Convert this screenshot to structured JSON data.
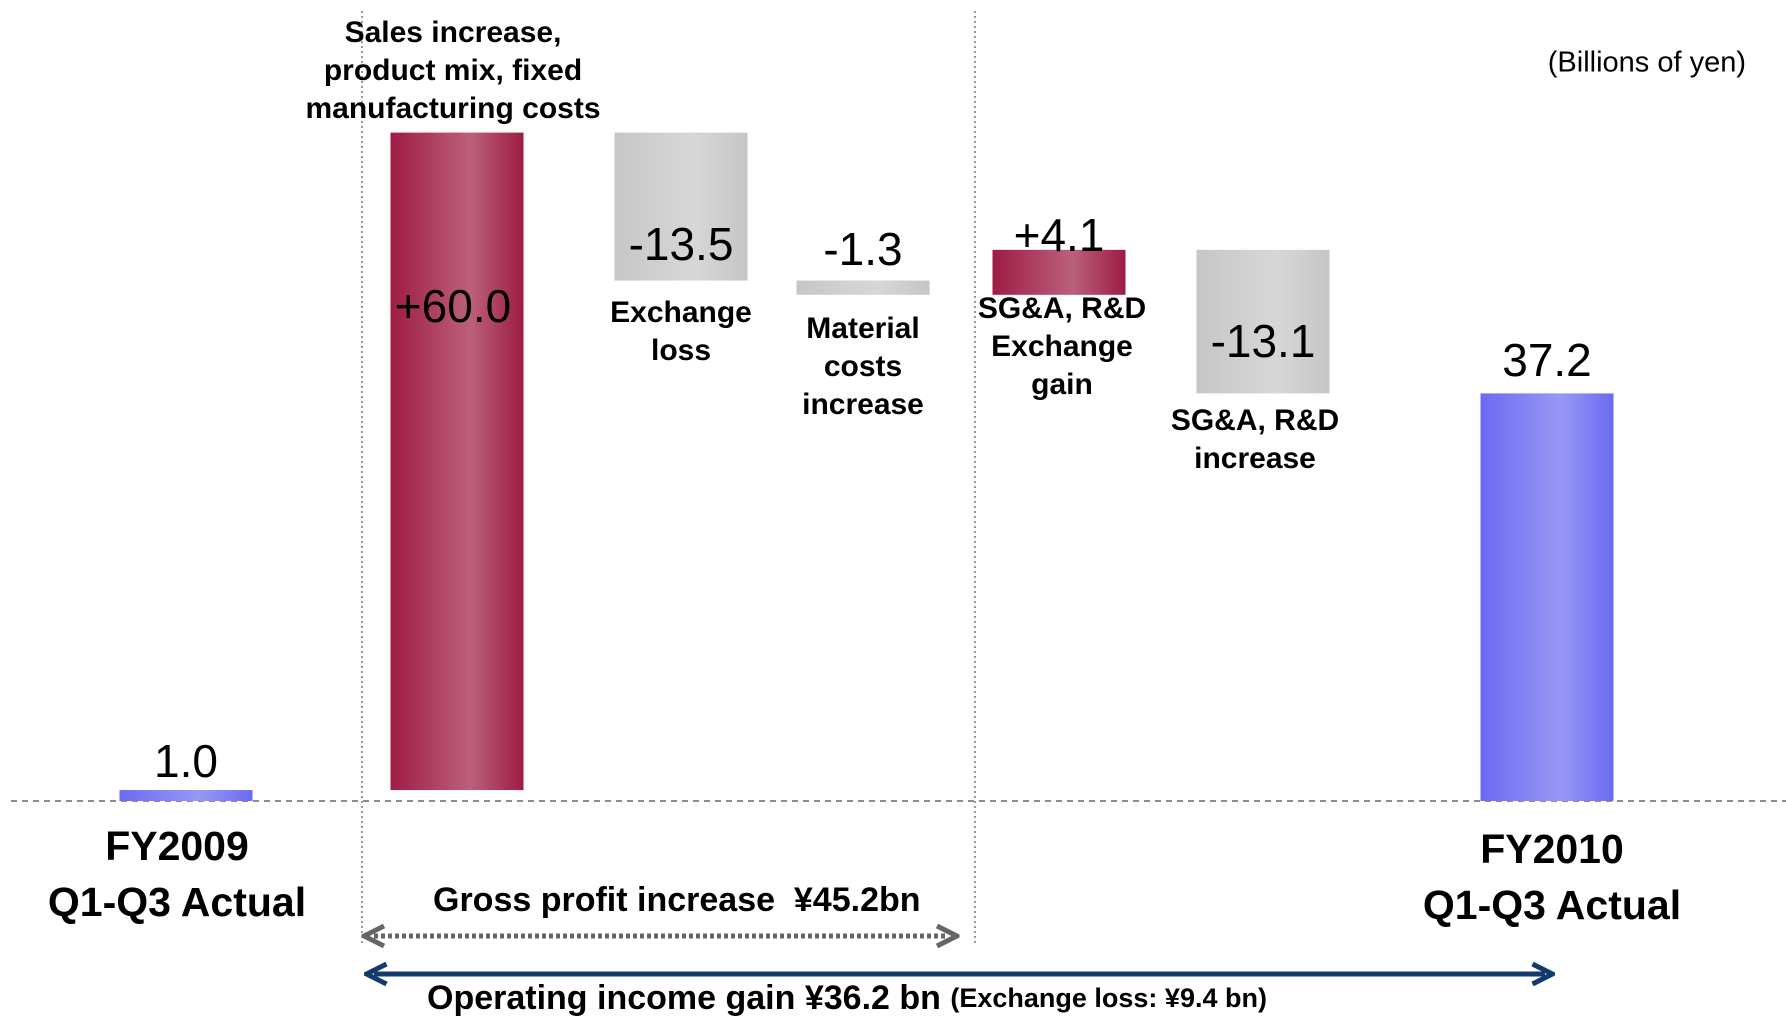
{
  "chart_data": {
    "type": "waterfall",
    "unit_label": "(Billions of yen)",
    "categories": [
      [
        "FY2009",
        "Q1-Q3 Actual"
      ],
      [
        "Sales increase,",
        "product mix, fixed",
        "manufacturing costs"
      ],
      [
        "Exchange",
        "loss"
      ],
      [
        "Material",
        "costs",
        "increase"
      ],
      [
        "SG&A, R&D",
        "Exchange",
        "gain"
      ],
      [
        "SG&A, R&D",
        "increase"
      ],
      [
        "FY2010",
        "Q1-Q3 Actual"
      ]
    ],
    "values": [
      1.0,
      60.0,
      -13.5,
      -1.3,
      4.1,
      -13.1,
      37.2
    ],
    "value_labels": [
      "1.0",
      "+60.0",
      "-13.5",
      "-1.3",
      "+4.1",
      "-13.1",
      "37.2"
    ],
    "colors": {
      "total": "#6b6bf2",
      "increase": "#9e1c44",
      "decrease": "#c6c6c6"
    },
    "ylim": [
      0,
      70
    ],
    "annotations": {
      "gross_profit": "Gross profit increase  ¥45.2bn",
      "operating_income": "Operating income gain ¥36.2 bn ",
      "exchange_note": "(Exchange loss: ¥9.4 bn)"
    }
  }
}
